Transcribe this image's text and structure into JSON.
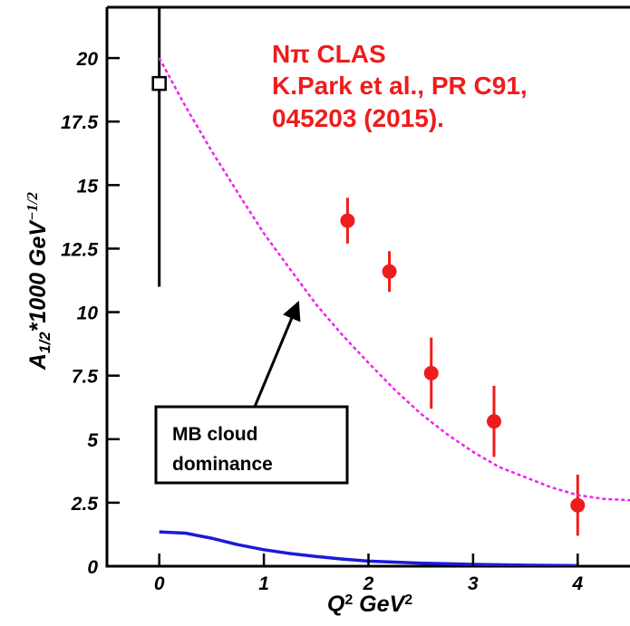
{
  "chart_data": {
    "type": "scatter",
    "xlim": [
      -0.5,
      4.5
    ],
    "ylim": [
      0,
      22
    ],
    "xticks": [
      0,
      1,
      2,
      3,
      4
    ],
    "yticks": [
      0,
      2.5,
      5,
      7.5,
      10,
      12.5,
      15,
      17.5,
      20
    ],
    "x_label": [
      "Q",
      "2",
      " GeV",
      "2"
    ],
    "y_label": [
      "A",
      "1/2",
      "*1000 GeV",
      "−1/2"
    ],
    "annotations": [
      {
        "lines": [
          "Nπ CLAS",
          "K.Park et al., PR C91,",
          "045203 (2015)."
        ],
        "color": "#ee1c1c"
      },
      {
        "lines": [
          "MB cloud",
          "dominance"
        ],
        "color": "#000000"
      }
    ],
    "series": [
      {
        "type": "scatter",
        "marker": "filled-circle",
        "color": "#ee1c1c",
        "x": [
          1.8,
          2.2,
          2.6,
          3.2,
          4.0
        ],
        "values": [
          13.6,
          11.6,
          7.6,
          5.7,
          2.4
        ],
        "errors": [
          0.9,
          0.8,
          1.4,
          1.4,
          1.2
        ]
      },
      {
        "type": "scatter",
        "marker": "open-square",
        "color": "#000000",
        "x": [
          0
        ],
        "values": [
          19.0
        ],
        "errors": [
          8
        ]
      },
      {
        "type": "line",
        "dash": true,
        "color": "#ee22ee",
        "x": [
          0,
          0.25,
          0.5,
          0.75,
          1.0,
          1.25,
          1.5,
          1.75,
          2.0,
          2.25,
          2.5,
          2.75,
          3.0,
          3.25,
          3.5,
          3.75,
          4.0,
          4.25,
          4.5
        ],
        "values": [
          20.0,
          18.1,
          16.35,
          14.7,
          13.1,
          11.7,
          10.3,
          9.1,
          8.0,
          6.95,
          6.0,
          5.2,
          4.5,
          3.9,
          3.5,
          3.1,
          2.8,
          2.65,
          2.6
        ]
      },
      {
        "type": "line",
        "dash": false,
        "color": "#1a1adb",
        "x": [
          0,
          0.25,
          0.5,
          0.75,
          1.0,
          1.25,
          1.5,
          1.75,
          2.0,
          2.5,
          3.0,
          3.5,
          4.0
        ],
        "values": [
          1.35,
          1.3,
          1.1,
          0.85,
          0.65,
          0.5,
          0.38,
          0.28,
          0.2,
          0.12,
          0.07,
          0.04,
          0.02
        ]
      }
    ]
  }
}
